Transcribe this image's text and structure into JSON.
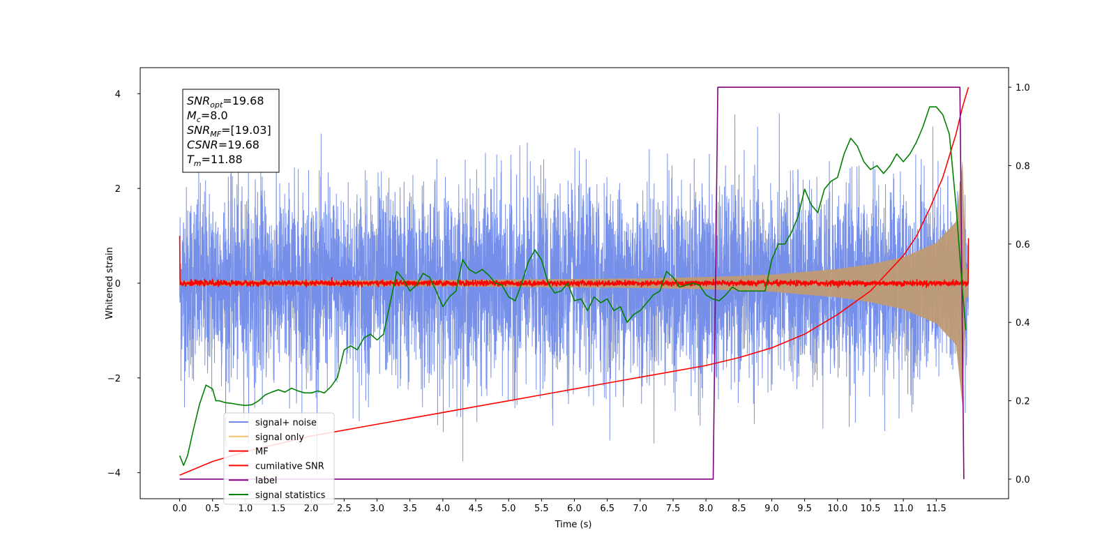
{
  "chart_data": {
    "type": "line",
    "xlabel": "Time (s)",
    "ylabel_left": "Whitened strain",
    "ylabel_right": "",
    "xlim": [
      -0.6,
      12.6
    ],
    "ylim_left": [
      -4.55,
      4.55
    ],
    "ylim_right": [
      -0.05,
      1.05
    ],
    "x_ticks": [
      "0.0",
      "0.5",
      "1.0",
      "1.5",
      "2.0",
      "2.5",
      "3.0",
      "3.5",
      "4.0",
      "4.5",
      "5.0",
      "5.5",
      "6.0",
      "6.5",
      "7.0",
      "7.5",
      "8.0",
      "8.5",
      "9.0",
      "9.5",
      "10.0",
      "10.5",
      "11.0",
      "11.5"
    ],
    "y_left_ticks": [
      "−4",
      "−2",
      "0",
      "2",
      "4"
    ],
    "y_right_ticks": [
      "0.0",
      "0.2",
      "0.4",
      "0.6",
      "0.8",
      "1.0"
    ],
    "grid": false,
    "legend_placement": "lower-left",
    "info_box": {
      "lines": [
        {
          "var": "SNR",
          "sub": "opt",
          "value": "=19.68"
        },
        {
          "var": "M",
          "sub": "c",
          "value": "=8.0"
        },
        {
          "var": "SNR",
          "sub": "MF",
          "value": "=[19.03]"
        },
        {
          "var": "CSNR",
          "sub": "",
          "value": "=19.68"
        },
        {
          "var": "T",
          "sub": "m",
          "value": "=11.88"
        }
      ]
    },
    "series": [
      {
        "name": "signal+ noise",
        "axis": "left",
        "color": "#6f8ae8",
        "description_kind": "noise",
        "x_range": [
          0,
          11.99
        ],
        "envelope_sigma": 1.0
      },
      {
        "name": "signal only",
        "axis": "left",
        "color": "#f5c26b",
        "description_kind": "chirp",
        "x_range": [
          0,
          11.99
        ],
        "amplitude_points": [
          [
            0,
            0.05
          ],
          [
            4,
            0.07
          ],
          [
            7,
            0.1
          ],
          [
            8,
            0.13
          ],
          [
            9,
            0.18
          ],
          [
            10,
            0.3
          ],
          [
            10.5,
            0.4
          ],
          [
            11,
            0.55
          ],
          [
            11.5,
            0.85
          ],
          [
            11.8,
            1.3
          ],
          [
            11.9,
            2.6
          ],
          [
            11.95,
            0.3
          ]
        ]
      },
      {
        "name": "MF",
        "axis": "left",
        "color": "#ff0000",
        "description_kind": "mf",
        "x_range": [
          0,
          11.99
        ],
        "start_value": 1.0,
        "end_value": 0.95
      },
      {
        "name": "cumilative SNR",
        "axis": "right",
        "color": "#ff0000",
        "x": [
          0,
          0.5,
          1,
          1.5,
          2,
          2.5,
          3,
          3.5,
          4,
          4.5,
          5,
          5.5,
          6,
          6.5,
          7,
          7.5,
          8,
          8.5,
          9,
          9.5,
          10,
          10.5,
          11,
          11.2,
          11.4,
          11.6,
          11.8,
          11.9,
          11.99
        ],
        "y": [
          0.01,
          0.045,
          0.07,
          0.09,
          0.11,
          0.125,
          0.14,
          0.155,
          0.17,
          0.185,
          0.2,
          0.215,
          0.23,
          0.245,
          0.26,
          0.275,
          0.29,
          0.31,
          0.335,
          0.37,
          0.42,
          0.48,
          0.57,
          0.62,
          0.69,
          0.77,
          0.88,
          0.95,
          1.0
        ]
      },
      {
        "name": "label",
        "axis": "right",
        "color": "#800080",
        "x": [
          0,
          8.11,
          8.18,
          11.86,
          11.92
        ],
        "y": [
          0,
          0,
          1,
          1,
          0
        ]
      },
      {
        "name": "signal statistics",
        "axis": "right",
        "color": "#008000",
        "x": [
          0,
          0.06,
          0.12,
          0.2,
          0.3,
          0.4,
          0.5,
          0.55,
          0.6,
          0.7,
          0.8,
          0.9,
          1.0,
          1.1,
          1.2,
          1.3,
          1.4,
          1.5,
          1.6,
          1.7,
          1.8,
          1.9,
          2.0,
          2.1,
          2.2,
          2.3,
          2.4,
          2.5,
          2.6,
          2.7,
          2.8,
          2.9,
          3.0,
          3.1,
          3.2,
          3.3,
          3.4,
          3.5,
          3.6,
          3.7,
          3.8,
          3.9,
          4.0,
          4.1,
          4.2,
          4.3,
          4.4,
          4.5,
          4.6,
          4.7,
          4.8,
          4.9,
          5.0,
          5.1,
          5.2,
          5.3,
          5.4,
          5.5,
          5.6,
          5.7,
          5.8,
          5.9,
          6.0,
          6.1,
          6.2,
          6.3,
          6.4,
          6.5,
          6.6,
          6.7,
          6.8,
          6.9,
          7.0,
          7.1,
          7.2,
          7.3,
          7.4,
          7.5,
          7.6,
          7.7,
          7.8,
          7.9,
          8.0,
          8.1,
          8.2,
          8.3,
          8.4,
          8.5,
          8.6,
          8.7,
          8.8,
          8.9,
          9.0,
          9.1,
          9.2,
          9.3,
          9.4,
          9.5,
          9.6,
          9.7,
          9.8,
          9.9,
          10.0,
          10.1,
          10.2,
          10.3,
          10.4,
          10.5,
          10.6,
          10.7,
          10.8,
          10.9,
          11.0,
          11.1,
          11.2,
          11.3,
          11.4,
          11.5,
          11.6,
          11.7,
          11.8,
          11.9,
          11.95
        ],
        "y": [
          0.06,
          0.035,
          0.06,
          0.12,
          0.19,
          0.24,
          0.23,
          0.2,
          0.2,
          0.195,
          0.193,
          0.19,
          0.188,
          0.19,
          0.2,
          0.215,
          0.222,
          0.228,
          0.222,
          0.232,
          0.225,
          0.22,
          0.22,
          0.225,
          0.22,
          0.236,
          0.26,
          0.33,
          0.34,
          0.33,
          0.36,
          0.37,
          0.355,
          0.37,
          0.45,
          0.53,
          0.51,
          0.48,
          0.495,
          0.525,
          0.515,
          0.48,
          0.44,
          0.465,
          0.48,
          0.56,
          0.535,
          0.525,
          0.535,
          0.52,
          0.5,
          0.495,
          0.465,
          0.455,
          0.5,
          0.555,
          0.585,
          0.56,
          0.5,
          0.475,
          0.48,
          0.5,
          0.455,
          0.46,
          0.43,
          0.465,
          0.45,
          0.46,
          0.43,
          0.44,
          0.4,
          0.42,
          0.43,
          0.45,
          0.47,
          0.48,
          0.53,
          0.515,
          0.49,
          0.495,
          0.5,
          0.495,
          0.47,
          0.46,
          0.455,
          0.47,
          0.49,
          0.48,
          0.48,
          0.48,
          0.48,
          0.48,
          0.56,
          0.6,
          0.6,
          0.63,
          0.67,
          0.74,
          0.7,
          0.68,
          0.74,
          0.76,
          0.77,
          0.83,
          0.87,
          0.85,
          0.81,
          0.79,
          0.8,
          0.78,
          0.8,
          0.83,
          0.81,
          0.83,
          0.86,
          0.9,
          0.95,
          0.95,
          0.93,
          0.88,
          0.7,
          0.48,
          0.38
        ]
      }
    ]
  }
}
